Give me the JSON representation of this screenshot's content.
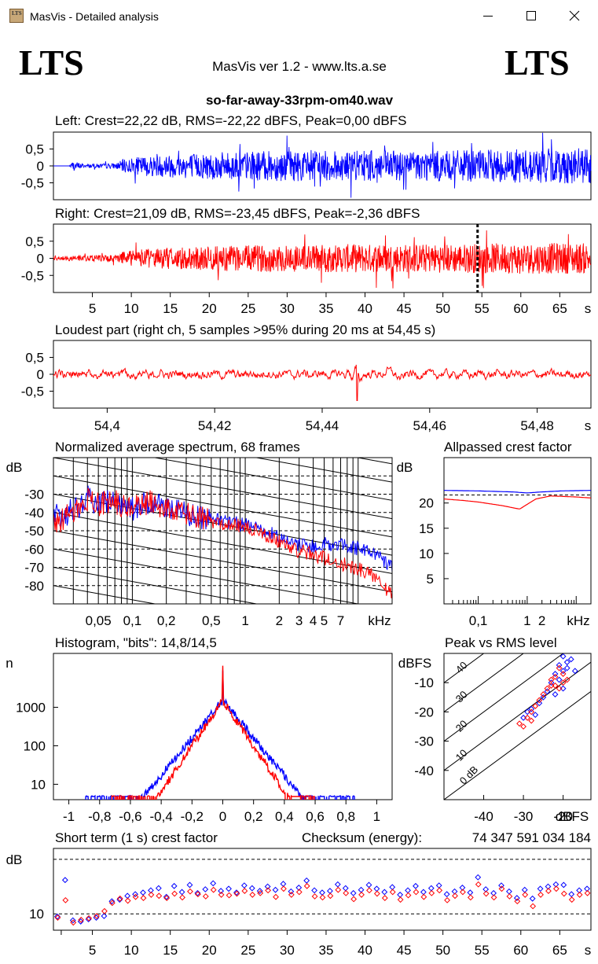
{
  "window": {
    "title": "MasVis - Detailed analysis",
    "icon_text": "LTS"
  },
  "header": {
    "logo_left": "LTS",
    "logo_right": "LTS",
    "app_version": "MasVis ver 1.2 - www.lts.a.se",
    "filename": "so-far-away-33rpm-om40.wav"
  },
  "chart_data": [
    {
      "id": "left",
      "type": "line",
      "title": "Left: Crest=22,22 dB, RMS=-22,22 dBFS, Peak=0,00 dBFS",
      "yticks": [
        "0,5",
        "0",
        "-0,5"
      ],
      "ylim": [
        -1,
        1
      ],
      "xlim": [
        0,
        69
      ],
      "color": "#0000ff",
      "envelope": {
        "t": [
          0,
          2,
          2.5,
          4,
          8,
          9,
          12,
          20,
          30,
          40,
          50,
          60,
          69
        ],
        "amp": [
          0,
          0,
          0.15,
          0.05,
          0.08,
          0.2,
          0.3,
          0.4,
          0.45,
          0.45,
          0.45,
          0.5,
          0.55
        ]
      }
    },
    {
      "id": "right",
      "type": "line",
      "title": "Right: Crest=21,09 dB, RMS=-23,45 dBFS, Peak=-2,36 dBFS",
      "yticks": [
        "0,5",
        "0",
        "-0,5"
      ],
      "ylim": [
        -1,
        1
      ],
      "xlim": [
        0,
        69
      ],
      "xticks": [
        5,
        10,
        15,
        20,
        25,
        30,
        35,
        40,
        45,
        50,
        55,
        60,
        65
      ],
      "xunit": "s",
      "color": "#ff0000",
      "marker_x": 54.45,
      "envelope": {
        "t": [
          0,
          2,
          8,
          9,
          12,
          20,
          30,
          40,
          50,
          60,
          69
        ],
        "amp": [
          0.05,
          0.08,
          0.1,
          0.2,
          0.3,
          0.35,
          0.4,
          0.42,
          0.42,
          0.45,
          0.45
        ]
      }
    },
    {
      "id": "loudest",
      "type": "line",
      "title": "Loudest part (right ch, 5 samples >95% during 20 ms at 54,45 s)",
      "yticks": [
        "0,5",
        "0",
        "-0,5"
      ],
      "ylim": [
        -1,
        1
      ],
      "xlim": [
        54.39,
        54.49
      ],
      "xticks": [
        "54,4",
        "54,42",
        "54,44",
        "54,46",
        "54,48"
      ],
      "xunit": "s",
      "color": "#ff0000"
    },
    {
      "id": "spectrum",
      "type": "line",
      "title": "Normalized average spectrum, 68 frames",
      "ylabel": "dB",
      "yticks": [
        -30,
        -40,
        -50,
        -60,
        -70,
        -80
      ],
      "ylim": [
        -90,
        -10
      ],
      "xlim_khz": [
        0.02,
        20
      ],
      "xticks": [
        "0,05",
        "0,1",
        "0,2",
        "0,5",
        "1",
        "2",
        "3",
        "4",
        "5",
        "7"
      ],
      "xunit": "kHz",
      "series": [
        {
          "color": "#0000ff",
          "x_khz": [
            0.02,
            0.03,
            0.04,
            0.05,
            0.07,
            0.1,
            0.15,
            0.2,
            0.3,
            0.5,
            0.7,
            1,
            1.5,
            2,
            3,
            4,
            5,
            7,
            10,
            15,
            20
          ],
          "db": [
            -43,
            -39,
            -32,
            -35,
            -33,
            -38,
            -34,
            -37,
            -40,
            -44,
            -45,
            -47,
            -50,
            -54,
            -58,
            -58,
            -57,
            -58,
            -60,
            -63,
            -70
          ]
        },
        {
          "color": "#ff0000",
          "x_khz": [
            0.02,
            0.03,
            0.04,
            0.05,
            0.07,
            0.1,
            0.15,
            0.2,
            0.3,
            0.5,
            0.7,
            1,
            1.5,
            2,
            3,
            4,
            5,
            7,
            10,
            15,
            20
          ],
          "db": [
            -46,
            -40,
            -33,
            -35,
            -34,
            -38,
            -34,
            -38,
            -41,
            -45,
            -46,
            -48,
            -52,
            -56,
            -61,
            -63,
            -65,
            -68,
            -71,
            -75,
            -86
          ]
        }
      ]
    },
    {
      "id": "allpass",
      "type": "line",
      "title": "Allpassed crest factor",
      "ylabel": "dB",
      "yticks": [
        20,
        15,
        10,
        5
      ],
      "ylim": [
        0,
        29
      ],
      "xlim_khz": [
        0.02,
        20
      ],
      "xticks": [
        "0,1",
        "1",
        "2"
      ],
      "xunit": "kHz",
      "reference_db": 21.6,
      "series": [
        {
          "color": "#0000ff",
          "x_khz": [
            0.02,
            0.1,
            0.5,
            1,
            2,
            5,
            20
          ],
          "db": [
            22.5,
            22.4,
            22.2,
            22.0,
            22.2,
            22.4,
            22.5
          ]
        },
        {
          "color": "#ff0000",
          "x_khz": [
            0.02,
            0.05,
            0.1,
            0.3,
            0.7,
            1.5,
            3,
            10,
            20
          ],
          "db": [
            20.8,
            20.5,
            20.2,
            19.5,
            18.8,
            20.8,
            21.4,
            21.2,
            21.0
          ]
        }
      ]
    },
    {
      "id": "histogram",
      "type": "line",
      "title": "Histogram, \"bits\": 14,8/14,5",
      "ylabel": "n",
      "yticks": [
        1000,
        100,
        10
      ],
      "xlim": [
        -1.1,
        1.1
      ],
      "xticks": [
        "-1",
        "-0,8",
        "-0,6",
        "-0,4",
        "-0,2",
        "0",
        "0,2",
        "0,4",
        "0,6",
        "0,8",
        "1"
      ],
      "series": [
        {
          "color": "#0000ff",
          "peak": 1500,
          "spike": 9000,
          "decay": 14,
          "x_extent": [
            -0.9,
            0.86
          ]
        },
        {
          "color": "#ff0000",
          "peak": 1500,
          "spike": 12000,
          "decay": 17,
          "x_extent": [
            -0.72,
            0.6
          ]
        }
      ]
    },
    {
      "id": "peak_rms",
      "type": "scatter",
      "title": "Peak vs RMS level",
      "ylabel": "dBFS",
      "xunit": "dBFS",
      "yticks": [
        -10,
        -20,
        -30,
        -40
      ],
      "xticks": [
        -40,
        -30,
        -20
      ],
      "xlim": [
        -50,
        -13
      ],
      "ylim": [
        -50,
        0
      ],
      "diagonal_labels": [
        "40",
        "30",
        "20",
        "10",
        "0 dB"
      ],
      "series": [
        {
          "color": "#0000ff",
          "points": [
            [
              -20,
              -1
            ],
            [
              -19,
              -3
            ],
            [
              -18,
              -2
            ],
            [
              -21,
              -4
            ],
            [
              -20,
              -6
            ],
            [
              -22,
              -7
            ],
            [
              -19,
              -5
            ],
            [
              -17,
              -6
            ],
            [
              -21,
              -9
            ],
            [
              -23,
              -10
            ],
            [
              -20,
              -12
            ],
            [
              -24,
              -13
            ],
            [
              -25,
              -15
            ],
            [
              -22,
              -14
            ],
            [
              -26,
              -17
            ],
            [
              -28,
              -19
            ],
            [
              -27,
              -21
            ],
            [
              -30,
              -22
            ],
            [
              -29,
              -20
            ]
          ]
        },
        {
          "color": "#ff0000",
          "points": [
            [
              -21,
              -5
            ],
            [
              -20,
              -7
            ],
            [
              -22,
              -8
            ],
            [
              -19,
              -9
            ],
            [
              -23,
              -11
            ],
            [
              -21,
              -12
            ],
            [
              -24,
              -12
            ],
            [
              -22,
              -11
            ],
            [
              -25,
              -14
            ],
            [
              -26,
              -16
            ],
            [
              -27,
              -18
            ],
            [
              -28,
              -20
            ],
            [
              -29,
              -22
            ],
            [
              -31,
              -24
            ],
            [
              -30,
              -25
            ],
            [
              -28,
              -23
            ],
            [
              -23,
              -9
            ],
            [
              -20,
              -10
            ]
          ]
        }
      ]
    },
    {
      "id": "short_crest",
      "type": "scatter",
      "title": "Short term (1 s) crest factor",
      "checksum_label": "Checksum (energy):",
      "checksum_value": "74 347 591 034 184",
      "ylabel": "dB",
      "yticks": [
        10
      ],
      "ylim": [
        7,
        22
      ],
      "xlim": [
        0,
        69
      ],
      "xticks": [
        5,
        10,
        15,
        20,
        25,
        30,
        35,
        40,
        45,
        50,
        55,
        60,
        65
      ],
      "xunit": "s",
      "series": [
        {
          "color": "#0000ff",
          "values": [
            9.5,
            16.2,
            8.8,
            8.6,
            9.0,
            9.3,
            9.6,
            12.3,
            12.6,
            13.3,
            13.6,
            13.9,
            14.3,
            14.7,
            13.1,
            15.1,
            14.0,
            15.3,
            13.8,
            14.5,
            15.6,
            14.2,
            14.6,
            13.9,
            15.2,
            14.7,
            14.2,
            15.0,
            14.4,
            15.5,
            14.1,
            14.8,
            16.1,
            14.3,
            13.9,
            14.2,
            15.4,
            14.7,
            13.8,
            14.4,
            15.3,
            14.6,
            14.0,
            14.9,
            13.5,
            14.3,
            15.1,
            14.0,
            14.7,
            15.2,
            13.6,
            14.1,
            14.8,
            13.9,
            16.7,
            14.5,
            13.8,
            15.2,
            14.1,
            12.9,
            14.4,
            12.8,
            14.6,
            15.0,
            15.4,
            15.3,
            13.6,
            14.3,
            14.6
          ]
        },
        {
          "color": "#ff0000",
          "values": [
            9.3,
            12.5,
            8.4,
            8.9,
            9.2,
            9.6,
            10.5,
            12.0,
            12.8,
            12.4,
            13.1,
            12.9,
            13.5,
            13.3,
            12.9,
            13.7,
            13.0,
            14.1,
            13.6,
            13.2,
            14.4,
            13.5,
            13.4,
            13.7,
            14.2,
            13.5,
            13.8,
            14.3,
            13.1,
            14.6,
            13.5,
            14.0,
            15.1,
            13.2,
            13.0,
            13.3,
            14.4,
            13.8,
            12.7,
            13.5,
            14.3,
            13.7,
            12.9,
            14.0,
            12.6,
            13.4,
            14.0,
            13.1,
            13.8,
            14.3,
            12.5,
            13.3,
            14.0,
            13.0,
            15.4,
            13.7,
            13.0,
            14.6,
            13.2,
            12.3,
            13.5,
            11.4,
            13.5,
            14.2,
            14.6,
            13.7,
            12.6,
            13.5,
            13.8
          ]
        }
      ]
    }
  ]
}
